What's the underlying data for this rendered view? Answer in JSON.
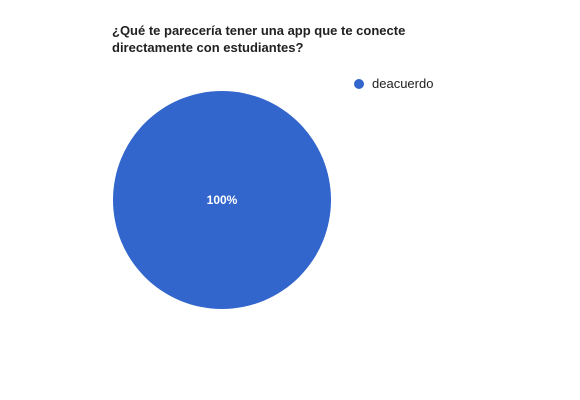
{
  "chart_data": {
    "type": "pie",
    "title_lines": [
      "¿Qué te parecería tener una app que te conecte",
      "directamente con estudiantes?"
    ],
    "slices": [
      {
        "label": "deacuerdo",
        "value": 100,
        "percent_label": "100%",
        "color": "#3366cc"
      }
    ],
    "legend": "top-right"
  }
}
